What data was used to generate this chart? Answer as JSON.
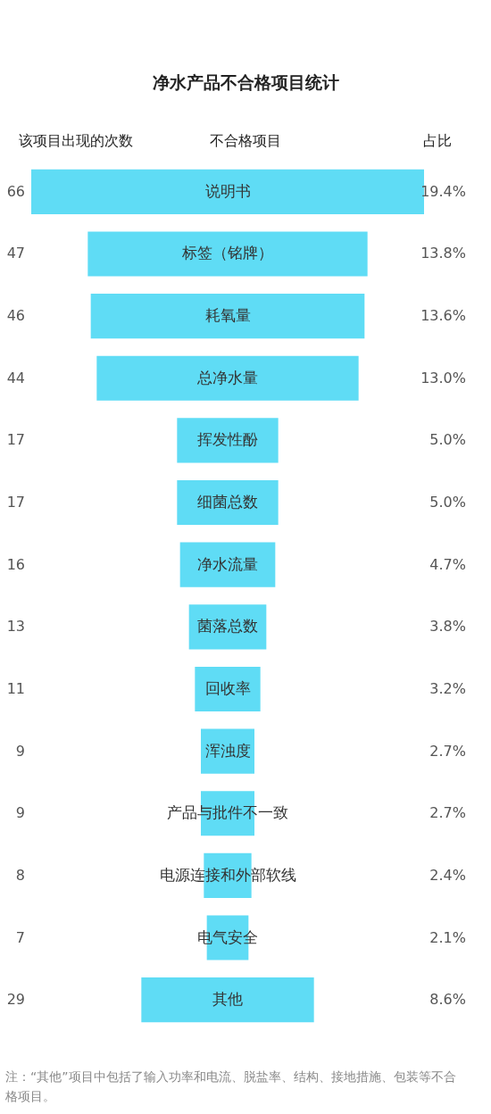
{
  "chart_data": {
    "type": "other",
    "title": "净水产品不合格项目统计",
    "categories": [
      "说明书",
      "标签（铭牌）",
      "耗氧量",
      "总净水量",
      "挥发性酚",
      "细菌总数",
      "净水流量",
      "菌落总数",
      "回收率",
      "浑浊度",
      "产品与批件不一致",
      "电源连接和外部软线",
      "电气安全",
      "其他"
    ],
    "values": [
      66,
      47,
      46,
      44,
      17,
      17,
      16,
      13,
      11,
      9,
      9,
      8,
      7,
      29
    ],
    "color": "#5fdcf5",
    "data_labels": true,
    "annotations": [
      "该项目出现的次数",
      "不合格项目",
      "占比",
      "注：“其他”项目中包括了输入功率和电流、脱盐率、结构、接地措施、包装等不合格项目。",
      "19.4%",
      "13.8%",
      "13.6%",
      "13.0%",
      "5.0%",
      "5.0%",
      "4.7%",
      "3.8%",
      "3.2%",
      "2.7%",
      "2.7%",
      "2.4%",
      "2.1%",
      "8.6%"
    ]
  }
}
